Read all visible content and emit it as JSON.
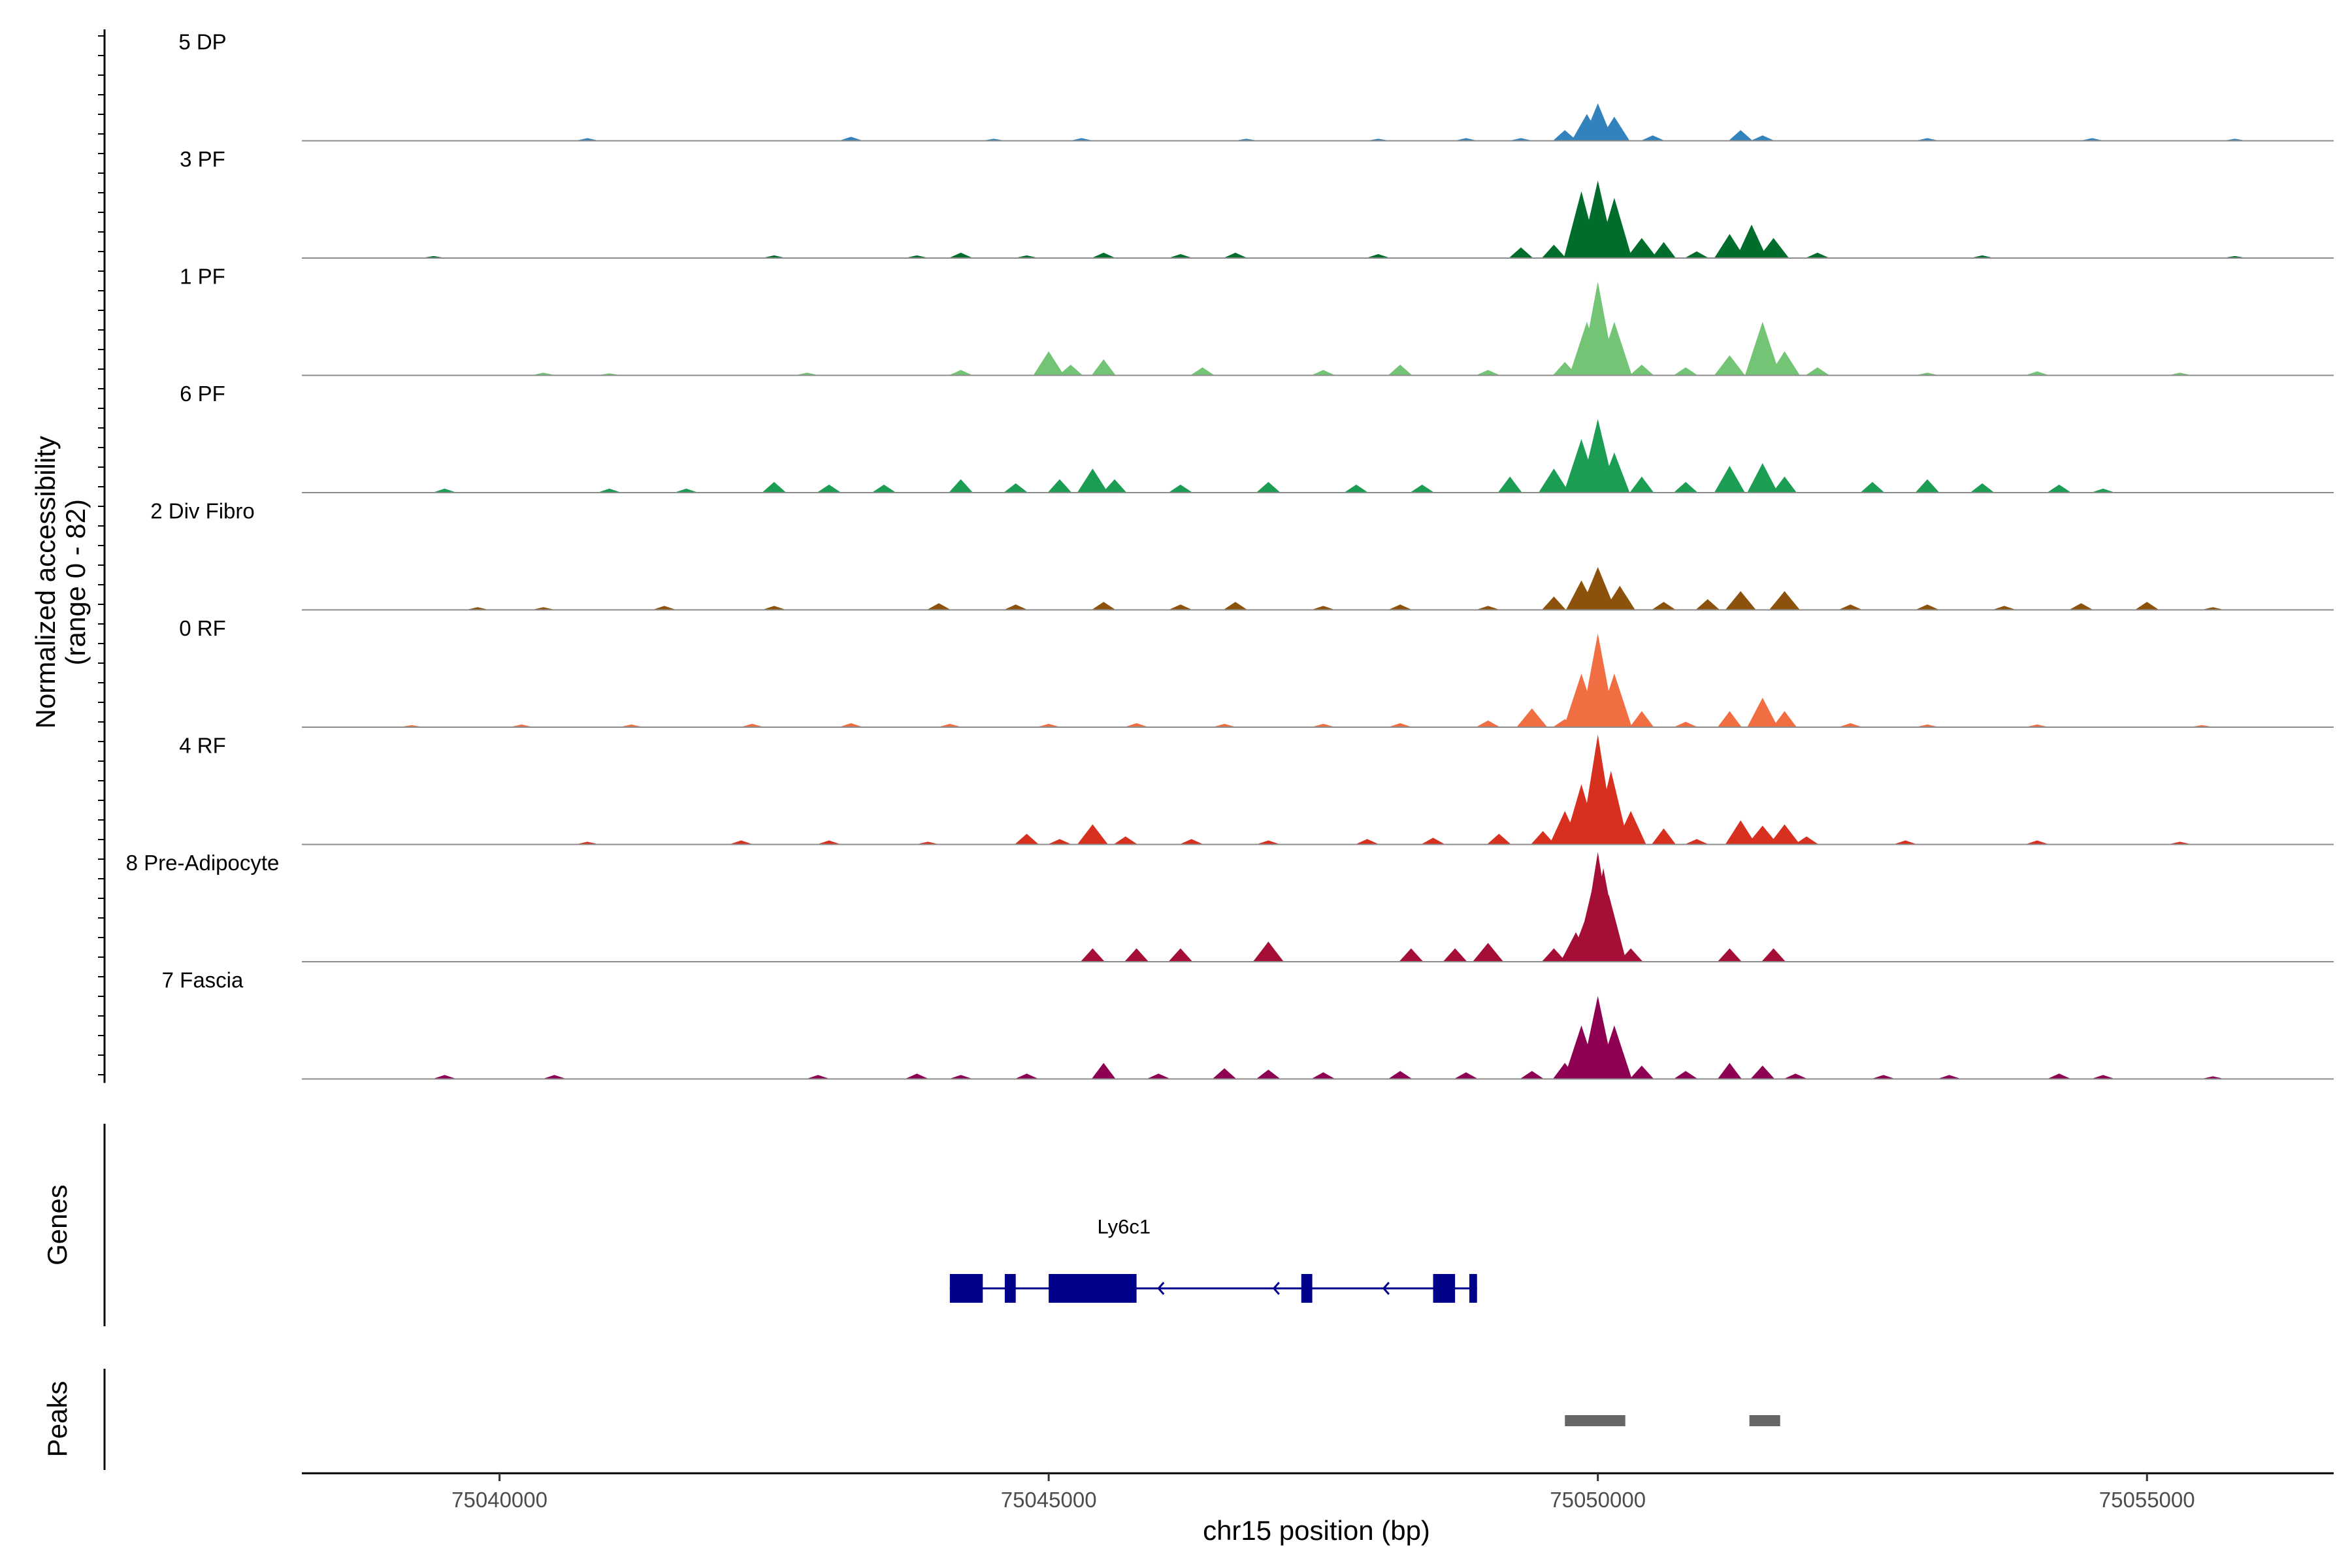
{
  "chart_data": {
    "type": "area",
    "region": {
      "chromosome": "chr15",
      "start": 75038200,
      "end": 75056700
    },
    "xlabel": "chr15 position (bp)",
    "ylabel": "Normalized accessibility\n(range 0 - 82)",
    "ylim": [
      0,
      82
    ],
    "x_ticks": [
      75040000,
      75045000,
      75050000,
      75055000
    ],
    "x_tick_labels": [
      "75040000",
      "75045000",
      "75050000",
      "75055000"
    ],
    "genes_panel_label": "Genes",
    "peaks_panel_label": "Peaks",
    "series": [
      {
        "name": "5 DP",
        "color": "#3182BD",
        "points": [
          [
            75040800,
            2
          ],
          [
            75043200,
            3
          ],
          [
            75044500,
            1.5
          ],
          [
            75045300,
            2
          ],
          [
            75046800,
            1.5
          ],
          [
            75048000,
            1.5
          ],
          [
            75048800,
            2
          ],
          [
            75049300,
            2
          ],
          [
            75049700,
            8
          ],
          [
            75049900,
            20
          ],
          [
            75050000,
            28
          ],
          [
            75050150,
            18
          ],
          [
            75050500,
            4
          ],
          [
            75051300,
            8
          ],
          [
            75051500,
            4
          ],
          [
            75053000,
            2
          ],
          [
            75054500,
            2
          ],
          [
            75055800,
            1.5
          ]
        ]
      },
      {
        "name": "3 PF",
        "color": "#006D2C",
        "points": [
          [
            75039400,
            1.5
          ],
          [
            75042500,
            2
          ],
          [
            75043800,
            2
          ],
          [
            75044200,
            4
          ],
          [
            75044800,
            2
          ],
          [
            75045500,
            4
          ],
          [
            75046200,
            3
          ],
          [
            75046700,
            4
          ],
          [
            75048000,
            3
          ],
          [
            75049300,
            8
          ],
          [
            75049600,
            10
          ],
          [
            75049850,
            50
          ],
          [
            75050000,
            58
          ],
          [
            75050150,
            45
          ],
          [
            75050400,
            15
          ],
          [
            75050600,
            12
          ],
          [
            75050900,
            5
          ],
          [
            75051200,
            18
          ],
          [
            75051400,
            25
          ],
          [
            75051600,
            15
          ],
          [
            75052000,
            4
          ],
          [
            75053500,
            2
          ],
          [
            75055800,
            1.5
          ]
        ]
      },
      {
        "name": "1 PF",
        "color": "#74C476",
        "points": [
          [
            75040400,
            2
          ],
          [
            75041000,
            1.5
          ],
          [
            75042800,
            2
          ],
          [
            75044200,
            4
          ],
          [
            75045000,
            18
          ],
          [
            75045200,
            8
          ],
          [
            75045500,
            12
          ],
          [
            75046400,
            6
          ],
          [
            75047500,
            4
          ],
          [
            75048200,
            8
          ],
          [
            75049000,
            4
          ],
          [
            75049700,
            10
          ],
          [
            75049900,
            40
          ],
          [
            75050000,
            70
          ],
          [
            75050150,
            40
          ],
          [
            75050400,
            8
          ],
          [
            75050800,
            6
          ],
          [
            75051200,
            15
          ],
          [
            75051500,
            40
          ],
          [
            75051700,
            18
          ],
          [
            75052000,
            6
          ],
          [
            75053000,
            2
          ],
          [
            75054000,
            3
          ],
          [
            75055300,
            2
          ]
        ]
      },
      {
        "name": "6 PF",
        "color": "#1B9E53",
        "points": [
          [
            75039500,
            3
          ],
          [
            75041000,
            3
          ],
          [
            75041700,
            3
          ],
          [
            75042500,
            8
          ],
          [
            75043000,
            6
          ],
          [
            75043500,
            6
          ],
          [
            75044200,
            10
          ],
          [
            75044700,
            7
          ],
          [
            75045100,
            10
          ],
          [
            75045400,
            18
          ],
          [
            75045600,
            10
          ],
          [
            75046200,
            6
          ],
          [
            75047000,
            8
          ],
          [
            75047800,
            6
          ],
          [
            75048400,
            6
          ],
          [
            75049200,
            12
          ],
          [
            75049600,
            18
          ],
          [
            75049850,
            40
          ],
          [
            75050000,
            55
          ],
          [
            75050150,
            30
          ],
          [
            75050400,
            12
          ],
          [
            75050800,
            8
          ],
          [
            75051200,
            20
          ],
          [
            75051500,
            22
          ],
          [
            75051700,
            12
          ],
          [
            75052500,
            8
          ],
          [
            75053000,
            10
          ],
          [
            75053500,
            7
          ],
          [
            75054200,
            6
          ],
          [
            75054600,
            3
          ]
        ]
      },
      {
        "name": "2 Div Fibro",
        "color": "#8C510A",
        "points": [
          [
            75039800,
            2
          ],
          [
            75040400,
            2
          ],
          [
            75041500,
            3
          ],
          [
            75042500,
            3
          ],
          [
            75044000,
            5
          ],
          [
            75044700,
            4
          ],
          [
            75045500,
            6
          ],
          [
            75046200,
            4
          ],
          [
            75046700,
            6
          ],
          [
            75047500,
            3
          ],
          [
            75048200,
            4
          ],
          [
            75049000,
            3
          ],
          [
            75049600,
            10
          ],
          [
            75049850,
            22
          ],
          [
            75050000,
            32
          ],
          [
            75050200,
            18
          ],
          [
            75050600,
            6
          ],
          [
            75051000,
            8
          ],
          [
            75051300,
            14
          ],
          [
            75051700,
            14
          ],
          [
            75052300,
            4
          ],
          [
            75053000,
            4
          ],
          [
            75053700,
            3
          ],
          [
            75054400,
            5
          ],
          [
            75055000,
            6
          ],
          [
            75055600,
            2
          ]
        ]
      },
      {
        "name": "0 RF",
        "color": "#F16E43",
        "points": [
          [
            75039200,
            1.5
          ],
          [
            75040200,
            2
          ],
          [
            75041200,
            2
          ],
          [
            75042300,
            2.5
          ],
          [
            75043200,
            3
          ],
          [
            75044100,
            2.5
          ],
          [
            75045000,
            2.5
          ],
          [
            75045800,
            3
          ],
          [
            75046600,
            2.5
          ],
          [
            75047500,
            2.5
          ],
          [
            75048200,
            3
          ],
          [
            75049000,
            5
          ],
          [
            75049400,
            14
          ],
          [
            75049700,
            6
          ],
          [
            75049850,
            40
          ],
          [
            75050000,
            70
          ],
          [
            75050150,
            40
          ],
          [
            75050400,
            12
          ],
          [
            75050800,
            4
          ],
          [
            75051200,
            12
          ],
          [
            75051500,
            22
          ],
          [
            75051700,
            12
          ],
          [
            75052300,
            3
          ],
          [
            75053000,
            2
          ],
          [
            75054000,
            2
          ],
          [
            75055500,
            1.5
          ]
        ]
      },
      {
        "name": "4 RF",
        "color": "#D7301F",
        "points": [
          [
            75040800,
            2
          ],
          [
            75042200,
            3
          ],
          [
            75043000,
            3
          ],
          [
            75043900,
            2
          ],
          [
            75044800,
            8
          ],
          [
            75045100,
            4
          ],
          [
            75045400,
            15
          ],
          [
            75045700,
            6
          ],
          [
            75046300,
            4
          ],
          [
            75047000,
            3
          ],
          [
            75047900,
            4
          ],
          [
            75048500,
            5
          ],
          [
            75049100,
            8
          ],
          [
            75049500,
            10
          ],
          [
            75049700,
            25
          ],
          [
            75049850,
            45
          ],
          [
            75050000,
            82
          ],
          [
            75050120,
            55
          ],
          [
            75050300,
            25
          ],
          [
            75050600,
            12
          ],
          [
            75050900,
            4
          ],
          [
            75051300,
            18
          ],
          [
            75051500,
            14
          ],
          [
            75051700,
            15
          ],
          [
            75051900,
            6
          ],
          [
            75052800,
            3
          ],
          [
            75054000,
            3
          ],
          [
            75055300,
            2
          ]
        ]
      },
      {
        "name": "8 Pre-Adipocyte",
        "color": "#A50F35",
        "points": [
          [
            75045400,
            10
          ],
          [
            75045800,
            10
          ],
          [
            75046200,
            10
          ],
          [
            75047000,
            15
          ],
          [
            75048300,
            10
          ],
          [
            75048700,
            10
          ],
          [
            75049000,
            14
          ],
          [
            75049600,
            10
          ],
          [
            75049800,
            22
          ],
          [
            75049900,
            35
          ],
          [
            75049950,
            55
          ],
          [
            75050000,
            82
          ],
          [
            75050050,
            70
          ],
          [
            75050100,
            50
          ],
          [
            75050300,
            10
          ],
          [
            75051200,
            10
          ],
          [
            75051600,
            10
          ]
        ]
      },
      {
        "name": "7 Fascia",
        "color": "#8E0152",
        "points": [
          [
            75039500,
            3
          ],
          [
            75040500,
            3
          ],
          [
            75042900,
            3
          ],
          [
            75043800,
            4
          ],
          [
            75044200,
            3
          ],
          [
            75044800,
            4
          ],
          [
            75045500,
            12
          ],
          [
            75046000,
            4
          ],
          [
            75046600,
            8
          ],
          [
            75047000,
            7
          ],
          [
            75047500,
            5
          ],
          [
            75048200,
            6
          ],
          [
            75048800,
            5
          ],
          [
            75049400,
            6
          ],
          [
            75049700,
            12
          ],
          [
            75049850,
            40
          ],
          [
            75050000,
            62
          ],
          [
            75050150,
            40
          ],
          [
            75050400,
            10
          ],
          [
            75050800,
            6
          ],
          [
            75051200,
            12
          ],
          [
            75051500,
            10
          ],
          [
            75051800,
            4
          ],
          [
            75052600,
            3
          ],
          [
            75053200,
            3
          ],
          [
            75054200,
            4
          ],
          [
            75054600,
            3
          ],
          [
            75055600,
            2
          ]
        ]
      }
    ],
    "genes": [
      {
        "name": "Ly6c1",
        "strand": "-",
        "color": "#00008B",
        "start": 75044100,
        "end": 75048900,
        "exons": [
          [
            75044100,
            75044400
          ],
          [
            75044600,
            75044700
          ],
          [
            75045000,
            75045800
          ],
          [
            75047300,
            75047400
          ],
          [
            75048500,
            75048700
          ],
          [
            75048830,
            75048900
          ]
        ]
      }
    ],
    "peaks": [
      {
        "start": 75049700,
        "end": 75050250,
        "color": "#666666"
      },
      {
        "start": 75051380,
        "end": 75051660,
        "color": "#666666"
      }
    ]
  }
}
